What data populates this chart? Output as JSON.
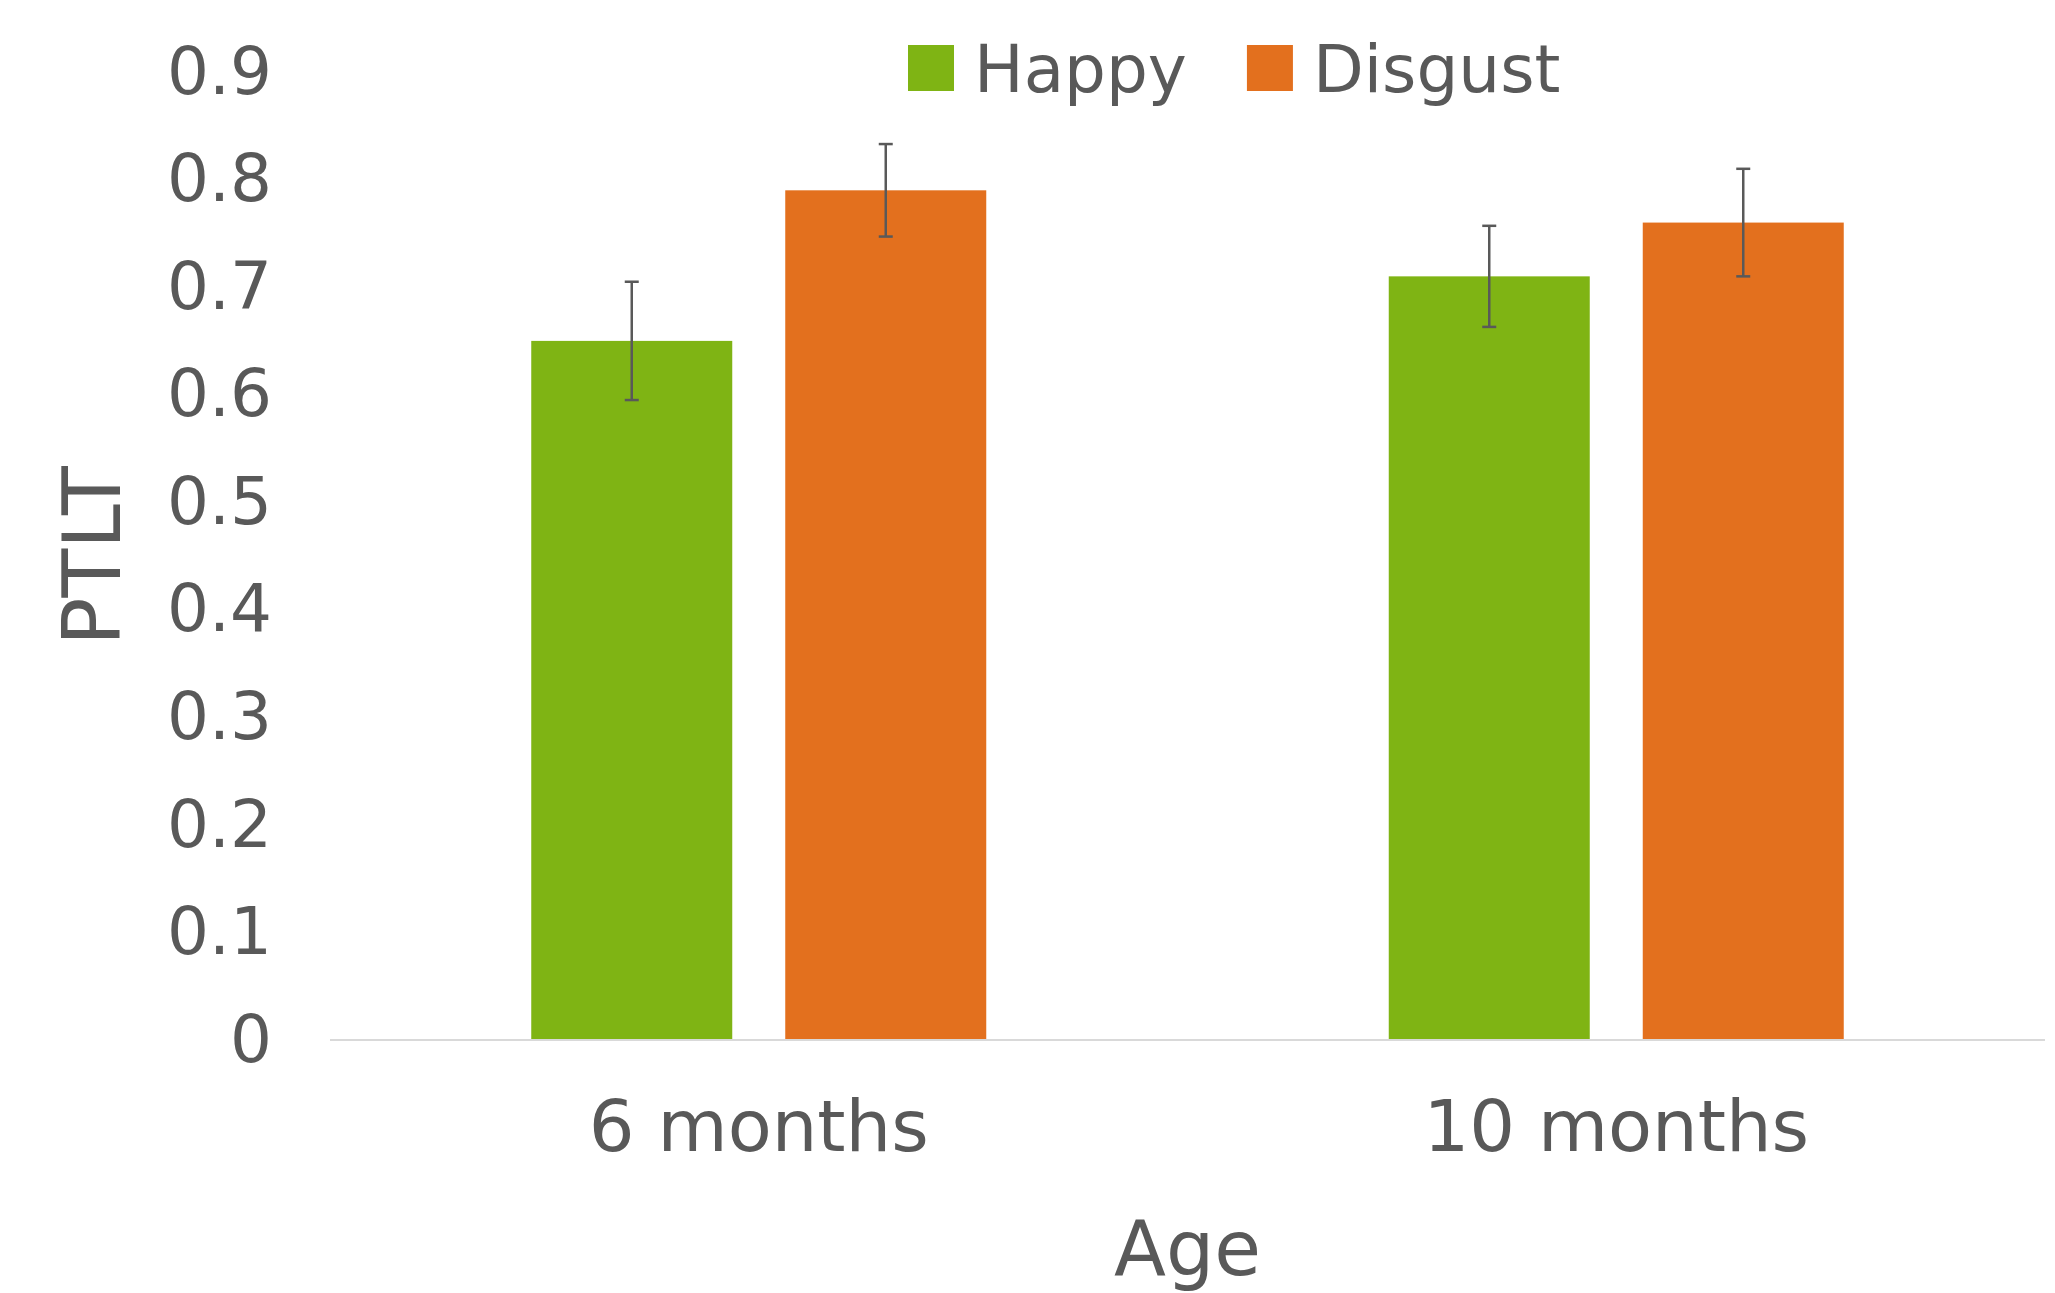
{
  "chart_data": {
    "type": "bar",
    "xlabel": "Age",
    "ylabel": "PTLT",
    "categories": [
      "6 months",
      "10 months"
    ],
    "series": [
      {
        "name": "Happy",
        "color": "#7fb414",
        "values": [
          0.65,
          0.71
        ],
        "errors": [
          0.055,
          0.047
        ]
      },
      {
        "name": "Disgust",
        "color": "#e3701e",
        "values": [
          0.79,
          0.76
        ],
        "errors": [
          0.043,
          0.05
        ]
      }
    ],
    "ylim": [
      0,
      0.9
    ],
    "yticks": [
      0,
      0.1,
      0.2,
      0.3,
      0.4,
      0.5,
      0.6,
      0.7,
      0.8,
      0.9
    ],
    "grid": false,
    "legend": "top"
  }
}
